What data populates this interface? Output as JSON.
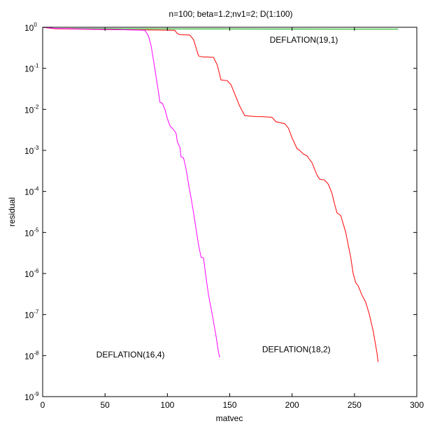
{
  "chart_data": {
    "type": "line",
    "title": "n=100; beta=1.2;nv1=2; D(1:100)",
    "xlabel": "matvec",
    "ylabel": "residual",
    "xlim": [
      0,
      300
    ],
    "ylim_exponents": [
      -9,
      0
    ],
    "yscale": "log",
    "grid": false,
    "x_ticks": [
      "0",
      "50",
      "100",
      "150",
      "200",
      "250",
      "300"
    ],
    "y_ticks": [
      {
        "base": "10",
        "exp": "0"
      },
      {
        "base": "10",
        "exp": "-1"
      },
      {
        "base": "10",
        "exp": "-2"
      },
      {
        "base": "10",
        "exp": "-3"
      },
      {
        "base": "10",
        "exp": "-4"
      },
      {
        "base": "10",
        "exp": "-5"
      },
      {
        "base": "10",
        "exp": "-6"
      },
      {
        "base": "10",
        "exp": "-7"
      },
      {
        "base": "10",
        "exp": "-8"
      },
      {
        "base": "10",
        "exp": "-9"
      }
    ],
    "annotations": [
      {
        "text": "DEFLATION(19,1)",
        "x": 182,
        "y": 0.42
      },
      {
        "text": "DEFLATION(18,2)",
        "x": 176,
        "y": 1.2e-08
      },
      {
        "text": "DEFLATION(16,4)",
        "x": 43,
        "y": 9e-09
      }
    ],
    "series": [
      {
        "color": "#00aa00",
        "points": [
          [
            0,
            1.0
          ],
          [
            10,
            0.93
          ],
          [
            50,
            0.92
          ],
          [
            100,
            0.915
          ],
          [
            150,
            0.91
          ],
          [
            200,
            0.905
          ],
          [
            250,
            0.9
          ],
          [
            285,
            0.9
          ]
        ]
      },
      {
        "color": "#ff0000",
        "points": [
          [
            0,
            1.0
          ],
          [
            10,
            0.92
          ],
          [
            50,
            0.88
          ],
          [
            80,
            0.86
          ],
          [
            100,
            0.85
          ],
          [
            106,
            0.84
          ],
          [
            108,
            0.7
          ],
          [
            110,
            0.66
          ],
          [
            118,
            0.65
          ],
          [
            121,
            0.5
          ],
          [
            125,
            0.2
          ],
          [
            128,
            0.19
          ],
          [
            137,
            0.185
          ],
          [
            140,
            0.12
          ],
          [
            143,
            0.052
          ],
          [
            148,
            0.05
          ],
          [
            151,
            0.04
          ],
          [
            155,
            0.02
          ],
          [
            158,
            0.012
          ],
          [
            162,
            0.007
          ],
          [
            170,
            0.0067
          ],
          [
            178,
            0.0066
          ],
          [
            184,
            0.0064
          ],
          [
            187,
            0.005
          ],
          [
            194,
            0.0045
          ],
          [
            197,
            0.0035
          ],
          [
            200,
            0.002
          ],
          [
            204,
            0.0011
          ],
          [
            206,
            0.001
          ],
          [
            209,
            0.00082
          ],
          [
            212,
            0.00073
          ],
          [
            216,
            0.0005
          ],
          [
            220,
            0.00025
          ],
          [
            222,
            0.0002
          ],
          [
            226,
            0.00019
          ],
          [
            229,
            0.00015
          ],
          [
            232,
            9e-05
          ],
          [
            234,
            5e-05
          ],
          [
            236,
            3e-05
          ],
          [
            239,
            2.6e-05
          ],
          [
            243,
            1e-05
          ],
          [
            245,
            5e-06
          ],
          [
            247,
            2.5e-06
          ],
          [
            249,
            1e-06
          ],
          [
            251,
            6e-07
          ],
          [
            253,
            5e-07
          ],
          [
            256,
            3e-07
          ],
          [
            259,
            2e-07
          ],
          [
            262,
            1e-07
          ],
          [
            265,
            4e-08
          ],
          [
            268,
            1.2e-08
          ],
          [
            269,
            7e-09
          ]
        ]
      },
      {
        "color": "#ff00ff",
        "points": [
          [
            0,
            1.0
          ],
          [
            10,
            0.94
          ],
          [
            40,
            0.9
          ],
          [
            60,
            0.88
          ],
          [
            79,
            0.85
          ],
          [
            82,
            0.84
          ],
          [
            85,
            0.6
          ],
          [
            87,
            0.35
          ],
          [
            89,
            0.15
          ],
          [
            91,
            0.06
          ],
          [
            93,
            0.025
          ],
          [
            94,
            0.015
          ],
          [
            96,
            0.014
          ],
          [
            98,
            0.01
          ],
          [
            100,
            0.006
          ],
          [
            102,
            0.004
          ],
          [
            105,
            0.0032
          ],
          [
            107,
            0.0026
          ],
          [
            108,
            0.0016
          ],
          [
            110,
            0.0012
          ],
          [
            111,
            0.0007
          ],
          [
            113,
            0.00065
          ],
          [
            115,
            0.00035
          ],
          [
            117,
            0.00015
          ],
          [
            119,
            7e-05
          ],
          [
            121,
            3e-05
          ],
          [
            123,
            1.2e-05
          ],
          [
            125,
            5e-06
          ],
          [
            127,
            2.5e-06
          ],
          [
            129,
            2.4e-06
          ],
          [
            131,
            8e-07
          ],
          [
            133,
            3e-07
          ],
          [
            136,
            1e-07
          ],
          [
            139,
            3e-08
          ],
          [
            141,
            1.2e-08
          ],
          [
            142,
            9e-09
          ]
        ]
      }
    ]
  }
}
